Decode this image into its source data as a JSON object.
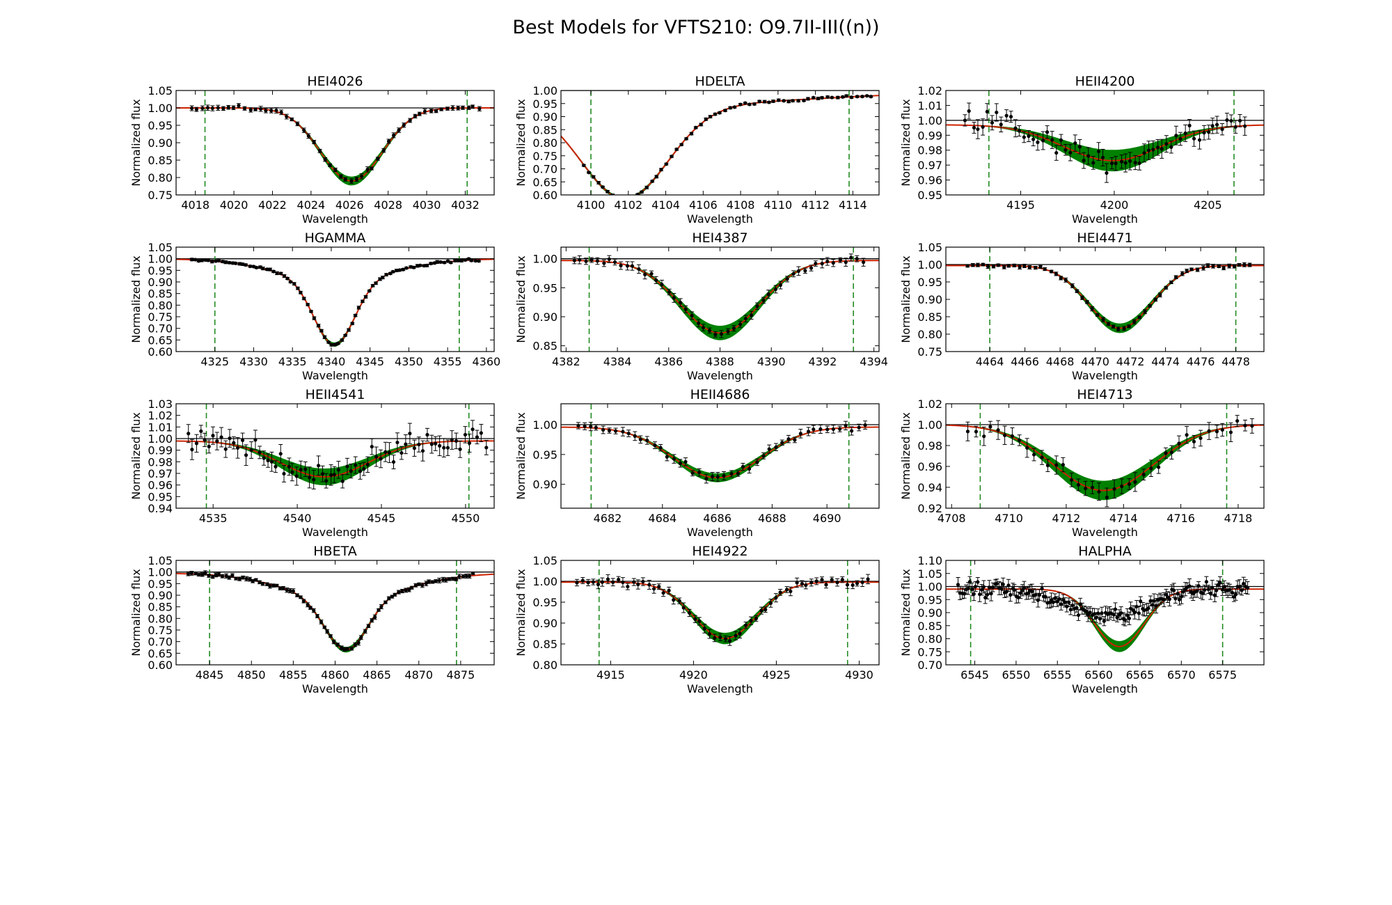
{
  "figure": {
    "title": "Best Models for VFTS210: O9.7II-III((n))"
  },
  "colors": {
    "band": "#008000",
    "model": "#cc2200",
    "data": "#000000",
    "continuum": "#000000",
    "window": "#228b22"
  },
  "chart_data": [
    {
      "type": "line",
      "title": "HEI4026",
      "xlabel": "Wavelength",
      "ylabel": "Normalized flux",
      "xlim": [
        4017,
        4033.5
      ],
      "ylim": [
        0.75,
        1.05
      ],
      "xticks": [
        4018,
        4020,
        4022,
        4024,
        4026,
        4028,
        4030,
        4032
      ],
      "yticks": [
        "0.75",
        "0.80",
        "0.85",
        "0.90",
        "0.95",
        "1.00",
        "1.05"
      ],
      "continuum": 1.0,
      "window": [
        4018.5,
        4032.1
      ],
      "line": {
        "center": 4026.1,
        "depth": 0.21,
        "sigma": 1.6,
        "band_halfwidth": 0.012
      },
      "points": {
        "x_start": 4017.8,
        "x_end": 4032.7,
        "count": 55,
        "scatter": 0.004,
        "err": 0.006
      }
    },
    {
      "type": "line",
      "title": "HDELTA",
      "xlabel": "Wavelength",
      "ylabel": "Normalized flux",
      "xlim": [
        4098.4,
        4115.4
      ],
      "ylim": [
        0.6,
        1.0
      ],
      "xticks": [
        4100,
        4102,
        4104,
        4106,
        4108,
        4110,
        4112,
        4114
      ],
      "yticks": [
        "0.60",
        "0.65",
        "0.70",
        "0.75",
        "0.80",
        "0.85",
        "0.90",
        "0.95",
        "1.00"
      ],
      "continuum": 1.0,
      "window": [
        4100.0,
        4113.8
      ],
      "line": {
        "center": 4101.8,
        "depth": 0.355,
        "sigma": 2.3,
        "wing_depth": 0.06,
        "wing_sigma": 9.0,
        "band_halfwidth": 0.004
      },
      "points": {
        "x_start": 4099.6,
        "x_end": 4115.0,
        "count": 60,
        "scatter": 0.004,
        "err": 0.004
      }
    },
    {
      "type": "line",
      "title": "HEII4200",
      "xlabel": "Wavelength",
      "ylabel": "Normalized flux",
      "xlim": [
        4191,
        4208
      ],
      "ylim": [
        0.95,
        1.02
      ],
      "xticks": [
        4195,
        4200,
        4205
      ],
      "yticks": [
        "0.95",
        "0.96",
        "0.97",
        "0.98",
        "0.99",
        "1.00",
        "1.01",
        "1.02"
      ],
      "continuum": 0.997,
      "window": [
        4193.3,
        4206.4
      ],
      "line": {
        "center": 4199.9,
        "depth": 0.024,
        "sigma": 2.6,
        "band_halfwidth": 0.007
      },
      "points": {
        "x_start": 4192.0,
        "x_end": 4207.0,
        "count": 62,
        "scatter": 0.006,
        "err": 0.005
      }
    },
    {
      "type": "line",
      "title": "HGAMMA",
      "xlabel": "Wavelength",
      "ylabel": "Normalized flux",
      "xlim": [
        4320,
        4361
      ],
      "ylim": [
        0.6,
        1.05
      ],
      "xticks": [
        4325,
        4330,
        4335,
        4340,
        4345,
        4350,
        4355,
        4360
      ],
      "yticks": [
        "0.60",
        "0.65",
        "0.70",
        "0.75",
        "0.80",
        "0.85",
        "0.90",
        "0.95",
        "1.00",
        "1.05"
      ],
      "continuum": 1.0,
      "window": [
        4325.0,
        4356.5
      ],
      "line": {
        "center": 4340.4,
        "depth": 0.28,
        "sigma": 2.6,
        "wing_depth": 0.09,
        "wing_sigma": 7.5,
        "band_halfwidth": 0.006
      },
      "points": {
        "x_start": 4322.0,
        "x_end": 4359.0,
        "count": 85,
        "scatter": 0.004,
        "err": 0.005
      }
    },
    {
      "type": "line",
      "title": "HEI4387",
      "xlabel": "Wavelength",
      "ylabel": "Normalized flux",
      "xlim": [
        4381.8,
        4394.2
      ],
      "ylim": [
        0.84,
        1.02
      ],
      "xticks": [
        4382,
        4384,
        4386,
        4388,
        4390,
        4392,
        4394
      ],
      "yticks": [
        "0.85",
        "0.90",
        "0.95",
        "1.00"
      ],
      "continuum": 0.997,
      "window": [
        4382.9,
        4393.2
      ],
      "line": {
        "center": 4388.0,
        "depth": 0.125,
        "sigma": 1.55,
        "band_halfwidth": 0.012
      },
      "points": {
        "x_start": 4382.3,
        "x_end": 4393.6,
        "count": 50,
        "scatter": 0.004,
        "err": 0.006
      }
    },
    {
      "type": "line",
      "title": "HEI4471",
      "xlabel": "Wavelength",
      "ylabel": "Normalized flux",
      "xlim": [
        4461.5,
        4479.6
      ],
      "ylim": [
        0.75,
        1.05
      ],
      "xticks": [
        4464,
        4466,
        4468,
        4470,
        4472,
        4474,
        4476,
        4478
      ],
      "yticks": [
        "0.75",
        "0.80",
        "0.85",
        "0.90",
        "0.95",
        "1.00",
        "1.05"
      ],
      "continuum": 0.997,
      "window": [
        4464.0,
        4478.0
      ],
      "line": {
        "center": 4471.4,
        "depth": 0.18,
        "sigma": 1.8,
        "band_halfwidth": 0.013
      },
      "points": {
        "x_start": 4462.7,
        "x_end": 4478.8,
        "count": 55,
        "scatter": 0.004,
        "err": 0.005
      }
    },
    {
      "type": "line",
      "title": "HEII4541",
      "xlabel": "Wavelength",
      "ylabel": "Normalized flux",
      "xlim": [
        4532.8,
        4551.7
      ],
      "ylim": [
        0.94,
        1.03
      ],
      "xticks": [
        4535,
        4540,
        4545,
        4550
      ],
      "yticks": [
        "0.94",
        "0.95",
        "0.96",
        "0.97",
        "0.98",
        "0.99",
        "1.00",
        "1.01",
        "1.02",
        "1.03"
      ],
      "continuum": 0.998,
      "window": [
        4534.6,
        4550.2
      ],
      "line": {
        "center": 4541.6,
        "depth": 0.031,
        "sigma": 2.6,
        "band_halfwidth": 0.007
      },
      "points": {
        "x_start": 4533.5,
        "x_end": 4551.2,
        "count": 72,
        "scatter": 0.008,
        "err": 0.007
      }
    },
    {
      "type": "line",
      "title": "HEII4686",
      "xlabel": "Wavelength",
      "ylabel": "Normalized flux",
      "xlim": [
        4680.3,
        4691.9
      ],
      "ylim": [
        0.86,
        1.035
      ],
      "xticks": [
        4682,
        4684,
        4686,
        4688,
        4690
      ],
      "yticks": [
        "0.90",
        "0.95",
        "1.00"
      ],
      "continuum": 0.996,
      "window": [
        4681.4,
        4690.8
      ],
      "line": {
        "center": 4686.0,
        "depth": 0.085,
        "sigma": 1.6,
        "band_halfwidth": 0.007
      },
      "points": {
        "x_start": 4680.9,
        "x_end": 4691.4,
        "count": 46,
        "scatter": 0.005,
        "err": 0.006
      }
    },
    {
      "type": "line",
      "title": "HEI4713",
      "xlabel": "Wavelength",
      "ylabel": "Normalized flux",
      "xlim": [
        4707.8,
        4718.9
      ],
      "ylim": [
        0.92,
        1.02
      ],
      "xticks": [
        4708,
        4710,
        4712,
        4714,
        4716,
        4718
      ],
      "yticks": [
        "0.92",
        "0.94",
        "0.96",
        "0.98",
        "1.00",
        "1.02"
      ],
      "continuum": 1.0,
      "window": [
        4709.0,
        4717.6
      ],
      "line": {
        "center": 4713.3,
        "depth": 0.063,
        "sigma": 1.75,
        "band_halfwidth": 0.009
      },
      "points": {
        "x_start": 4708.6,
        "x_end": 4718.5,
        "count": 40,
        "scatter": 0.005,
        "err": 0.007
      }
    },
    {
      "type": "line",
      "title": "HBETA",
      "xlabel": "Wavelength",
      "ylabel": "Normalized flux",
      "xlim": [
        4841,
        4879
      ],
      "ylim": [
        0.6,
        1.05
      ],
      "xticks": [
        4845,
        4850,
        4855,
        4860,
        4865,
        4870,
        4875
      ],
      "yticks": [
        "0.60",
        "0.65",
        "0.70",
        "0.75",
        "0.80",
        "0.85",
        "0.90",
        "0.95",
        "1.00",
        "1.05"
      ],
      "continuum": 0.995,
      "window": [
        4845.0,
        4874.5
      ],
      "line": {
        "center": 4861.3,
        "depth": 0.22,
        "sigma": 2.5,
        "wing_depth": 0.11,
        "wing_sigma": 7.0,
        "band_halfwidth": 0.008
      },
      "points": {
        "x_start": 4842.5,
        "x_end": 4876.5,
        "count": 85,
        "scatter": 0.006,
        "err": 0.008
      }
    },
    {
      "type": "line",
      "title": "HEI4922",
      "xlabel": "Wavelength",
      "ylabel": "Normalized flux",
      "xlim": [
        4912,
        4931.2
      ],
      "ylim": [
        0.8,
        1.05
      ],
      "xticks": [
        4915,
        4920,
        4925,
        4930
      ],
      "yticks": [
        "0.80",
        "0.85",
        "0.90",
        "0.95",
        "1.00",
        "1.05"
      ],
      "continuum": 0.998,
      "window": [
        4914.3,
        4929.3
      ],
      "line": {
        "center": 4921.9,
        "depth": 0.135,
        "sigma": 1.9,
        "band_halfwidth": 0.013
      },
      "points": {
        "x_start": 4913.0,
        "x_end": 4930.5,
        "count": 58,
        "scatter": 0.007,
        "err": 0.009
      }
    },
    {
      "type": "line",
      "title": "HALPHA",
      "xlabel": "Wavelength",
      "ylabel": "Normalized flux",
      "xlim": [
        6541.5,
        6580
      ],
      "ylim": [
        0.7,
        1.1
      ],
      "xticks": [
        6545,
        6550,
        6555,
        6560,
        6565,
        6570,
        6575
      ],
      "yticks": [
        "0.70",
        "0.75",
        "0.80",
        "0.85",
        "0.90",
        "0.95",
        "1.00",
        "1.05",
        "1.10"
      ],
      "continuum": 0.99,
      "window": [
        6544.5,
        6575.0
      ],
      "line": {
        "center": 6562.5,
        "depth": 0.22,
        "sigma": 3.0,
        "band_halfwidth": 0.02
      },
      "points": {
        "x_start": 6543.0,
        "x_end": 6578.0,
        "count": 150,
        "scatter": 0.02,
        "err": 0.022,
        "center": 6561,
        "depth": 0.1,
        "sigma": 5.0
      }
    }
  ]
}
